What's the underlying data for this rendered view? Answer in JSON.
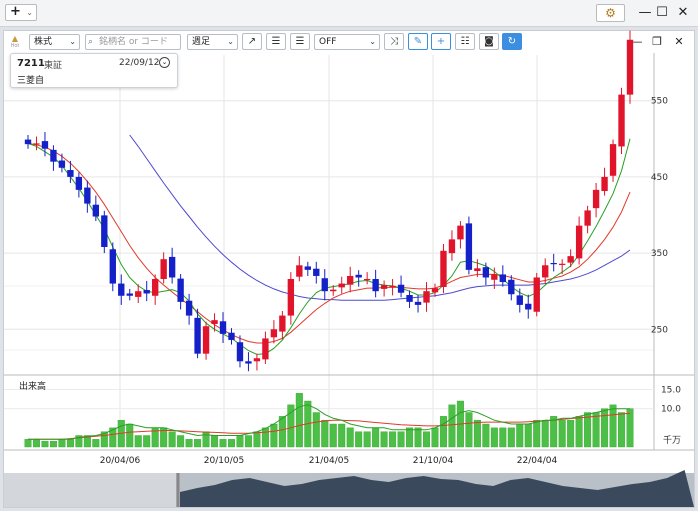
{
  "window": {
    "add_button": "+",
    "add_chevron": "⌄",
    "settings_icon": "gear-icon",
    "minimize": "—",
    "maximize": "☐",
    "close": "✕"
  },
  "toolbar": {
    "logo_text": "Hot",
    "market_select": "株式",
    "search_placeholder": "銘柄名 or コード",
    "period_select": "週足",
    "indicator_select": "OFF"
  },
  "panel_controls": {
    "minimize": "—",
    "restore": "❐",
    "close": "✕"
  },
  "stock": {
    "code": "7211",
    "exchange": "東証",
    "date": "22/09/12",
    "name": "三菱自"
  },
  "chart_data": [
    {
      "type": "candlestick",
      "y_ticks": [
        250,
        350,
        450,
        550
      ],
      "ylim": [
        190,
        610
      ],
      "candles_close": [
        493,
        494,
        487,
        470,
        462,
        450,
        433,
        415,
        398,
        358,
        310,
        294,
        294,
        300,
        297,
        316,
        342,
        318,
        286,
        268,
        218,
        254,
        262,
        244,
        236,
        208,
        205,
        212,
        238,
        250,
        268,
        316,
        334,
        328,
        320,
        300,
        302,
        310,
        320,
        318,
        316,
        300,
        308,
        307,
        298,
        286,
        282,
        300,
        304,
        353,
        368,
        386,
        328,
        330,
        318,
        322,
        312,
        296,
        282,
        276,
        318,
        334,
        336,
        336,
        346,
        386,
        406,
        433,
        450,
        493,
        558,
        630
      ],
      "ma_short": [
        494,
        490,
        483,
        476,
        465,
        450,
        435,
        418,
        400,
        382,
        358,
        335,
        318,
        307,
        300,
        298,
        300,
        302,
        298,
        287,
        270,
        258,
        250,
        244,
        238,
        230,
        222,
        217,
        218,
        225,
        236,
        252,
        270,
        286,
        298,
        304,
        306,
        308,
        310,
        313,
        314,
        310,
        308,
        307,
        304,
        300,
        295,
        295,
        298,
        308,
        320,
        338,
        340,
        337,
        333,
        326,
        316,
        306,
        298,
        293,
        298,
        308,
        318,
        325,
        333,
        348,
        366,
        385,
        406,
        428,
        458,
        500
      ],
      "ma_mid": [
        494,
        492,
        489,
        484,
        477,
        468,
        457,
        444,
        430,
        414,
        396,
        378,
        360,
        344,
        330,
        318,
        308,
        299,
        290,
        282,
        273,
        264,
        256,
        249,
        243,
        238,
        234,
        232,
        232,
        234,
        238,
        246,
        256,
        266,
        276,
        284,
        291,
        296,
        300,
        302,
        304,
        304,
        305,
        305,
        305,
        304,
        303,
        303,
        304,
        308,
        313,
        318,
        320,
        322,
        322,
        322,
        321,
        318,
        315,
        312,
        312,
        314,
        317,
        320,
        325,
        332,
        342,
        354,
        368,
        384,
        404,
        430
      ],
      "ma_long": [
        null,
        null,
        null,
        null,
        null,
        null,
        null,
        null,
        null,
        null,
        null,
        null,
        505,
        490,
        474,
        458,
        442,
        427,
        412,
        398,
        384,
        371,
        359,
        348,
        338,
        329,
        321,
        314,
        308,
        303,
        299,
        296,
        293,
        291,
        290,
        289,
        289,
        288,
        288,
        288,
        288,
        288,
        288,
        289,
        290,
        291,
        292,
        293,
        294,
        296,
        298,
        301,
        304,
        306,
        307,
        308,
        308,
        308,
        308,
        308,
        309,
        310,
        312,
        314,
        316,
        319,
        323,
        328,
        334,
        340,
        346,
        354
      ]
    },
    {
      "type": "bar",
      "title": "出来高",
      "unit": "千万",
      "y_ticks": [
        10.0,
        15.0
      ],
      "ylim": [
        0,
        18
      ],
      "values": [
        2,
        2,
        1.5,
        1.5,
        2,
        2,
        3,
        3,
        2,
        4,
        5,
        7,
        6,
        3,
        3,
        5,
        5,
        4,
        3,
        2,
        2,
        4,
        3,
        2,
        2,
        3,
        3,
        4,
        5,
        6,
        8,
        11,
        14,
        12,
        9,
        7,
        6,
        6,
        5,
        4,
        4,
        5,
        4,
        4,
        4,
        5,
        5,
        4,
        5,
        8,
        11,
        12,
        9,
        7,
        6,
        5,
        5,
        5,
        6,
        6,
        7,
        7,
        8,
        7,
        7,
        8,
        9,
        9,
        10,
        11,
        9,
        10
      ],
      "ma_short": [
        2,
        2,
        2,
        2,
        2,
        2,
        2.5,
        2.8,
        3,
        3.5,
        4.5,
        5.5,
        6,
        5.5,
        5,
        5,
        5,
        4.5,
        4,
        3.5,
        3,
        3.2,
        3,
        3,
        3,
        3,
        3.5,
        4,
        4.8,
        6,
        7.5,
        9,
        10.5,
        11,
        10,
        8.5,
        7.5,
        7,
        6,
        5.5,
        5,
        5,
        5,
        4.5,
        4.5,
        4.5,
        4.5,
        4.5,
        5,
        6,
        7.5,
        9,
        9.5,
        9,
        8,
        7,
        6.5,
        6,
        6,
        6,
        6.5,
        7,
        7,
        7.5,
        7.5,
        8,
        8.5,
        9,
        9.5,
        10,
        10,
        10
      ],
      "ma_mid": [
        2,
        2,
        2,
        2,
        2,
        2.2,
        2.4,
        2.6,
        2.8,
        3,
        3.3,
        3.6,
        3.9,
        4,
        4.1,
        4.2,
        4.3,
        4.3,
        4.2,
        4.1,
        4,
        3.9,
        3.8,
        3.7,
        3.6,
        3.6,
        3.6,
        3.7,
        3.9,
        4.1,
        4.5,
        5,
        5.6,
        6.1,
        6.5,
        6.8,
        7,
        7,
        6.9,
        6.8,
        6.6,
        6.4,
        6.2,
        6,
        5.8,
        5.7,
        5.6,
        5.5,
        5.5,
        5.6,
        5.8,
        6,
        6.2,
        6.4,
        6.5,
        6.5,
        6.5,
        6.5,
        6.5,
        6.6,
        6.7,
        6.9,
        7,
        7.2,
        7.4,
        7.6,
        7.8,
        8,
        8.2,
        8.4,
        8.6,
        8.8
      ]
    }
  ],
  "x_ticks": [
    "20/04/06",
    "20/10/05",
    "21/04/05",
    "21/10/04",
    "22/04/04"
  ],
  "colors": {
    "up": "#e0142a",
    "down": "#1420c8",
    "ma_short": "#28a024",
    "ma_mid": "#e03a2a",
    "ma_long": "#4e4ad0",
    "volume": "#4cbf46",
    "accent": "#3b8ee0"
  }
}
